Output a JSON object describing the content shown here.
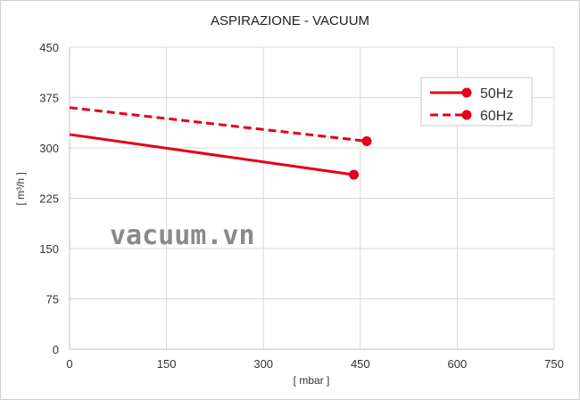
{
  "chart_data": {
    "type": "line",
    "title": "ASPIRAZIONE - VACUUM",
    "xlabel": "[ mbar ]",
    "ylabel": "[ m³/h ]",
    "xlim": [
      0,
      750
    ],
    "ylim": [
      0,
      450
    ],
    "xticks": [
      0,
      150,
      300,
      450,
      600,
      750
    ],
    "yticks": [
      0,
      75,
      150,
      225,
      300,
      375,
      450
    ],
    "grid": true,
    "legend_position": "top-right",
    "series": [
      {
        "name": "50Hz",
        "color": "#e3001b",
        "dash": "solid",
        "x": [
          0,
          440
        ],
        "y": [
          320,
          260
        ]
      },
      {
        "name": "60Hz",
        "color": "#e3001b",
        "dash": "dashed",
        "x": [
          0,
          460
        ],
        "y": [
          360,
          310
        ]
      }
    ]
  },
  "watermark": "vacuum.vn"
}
